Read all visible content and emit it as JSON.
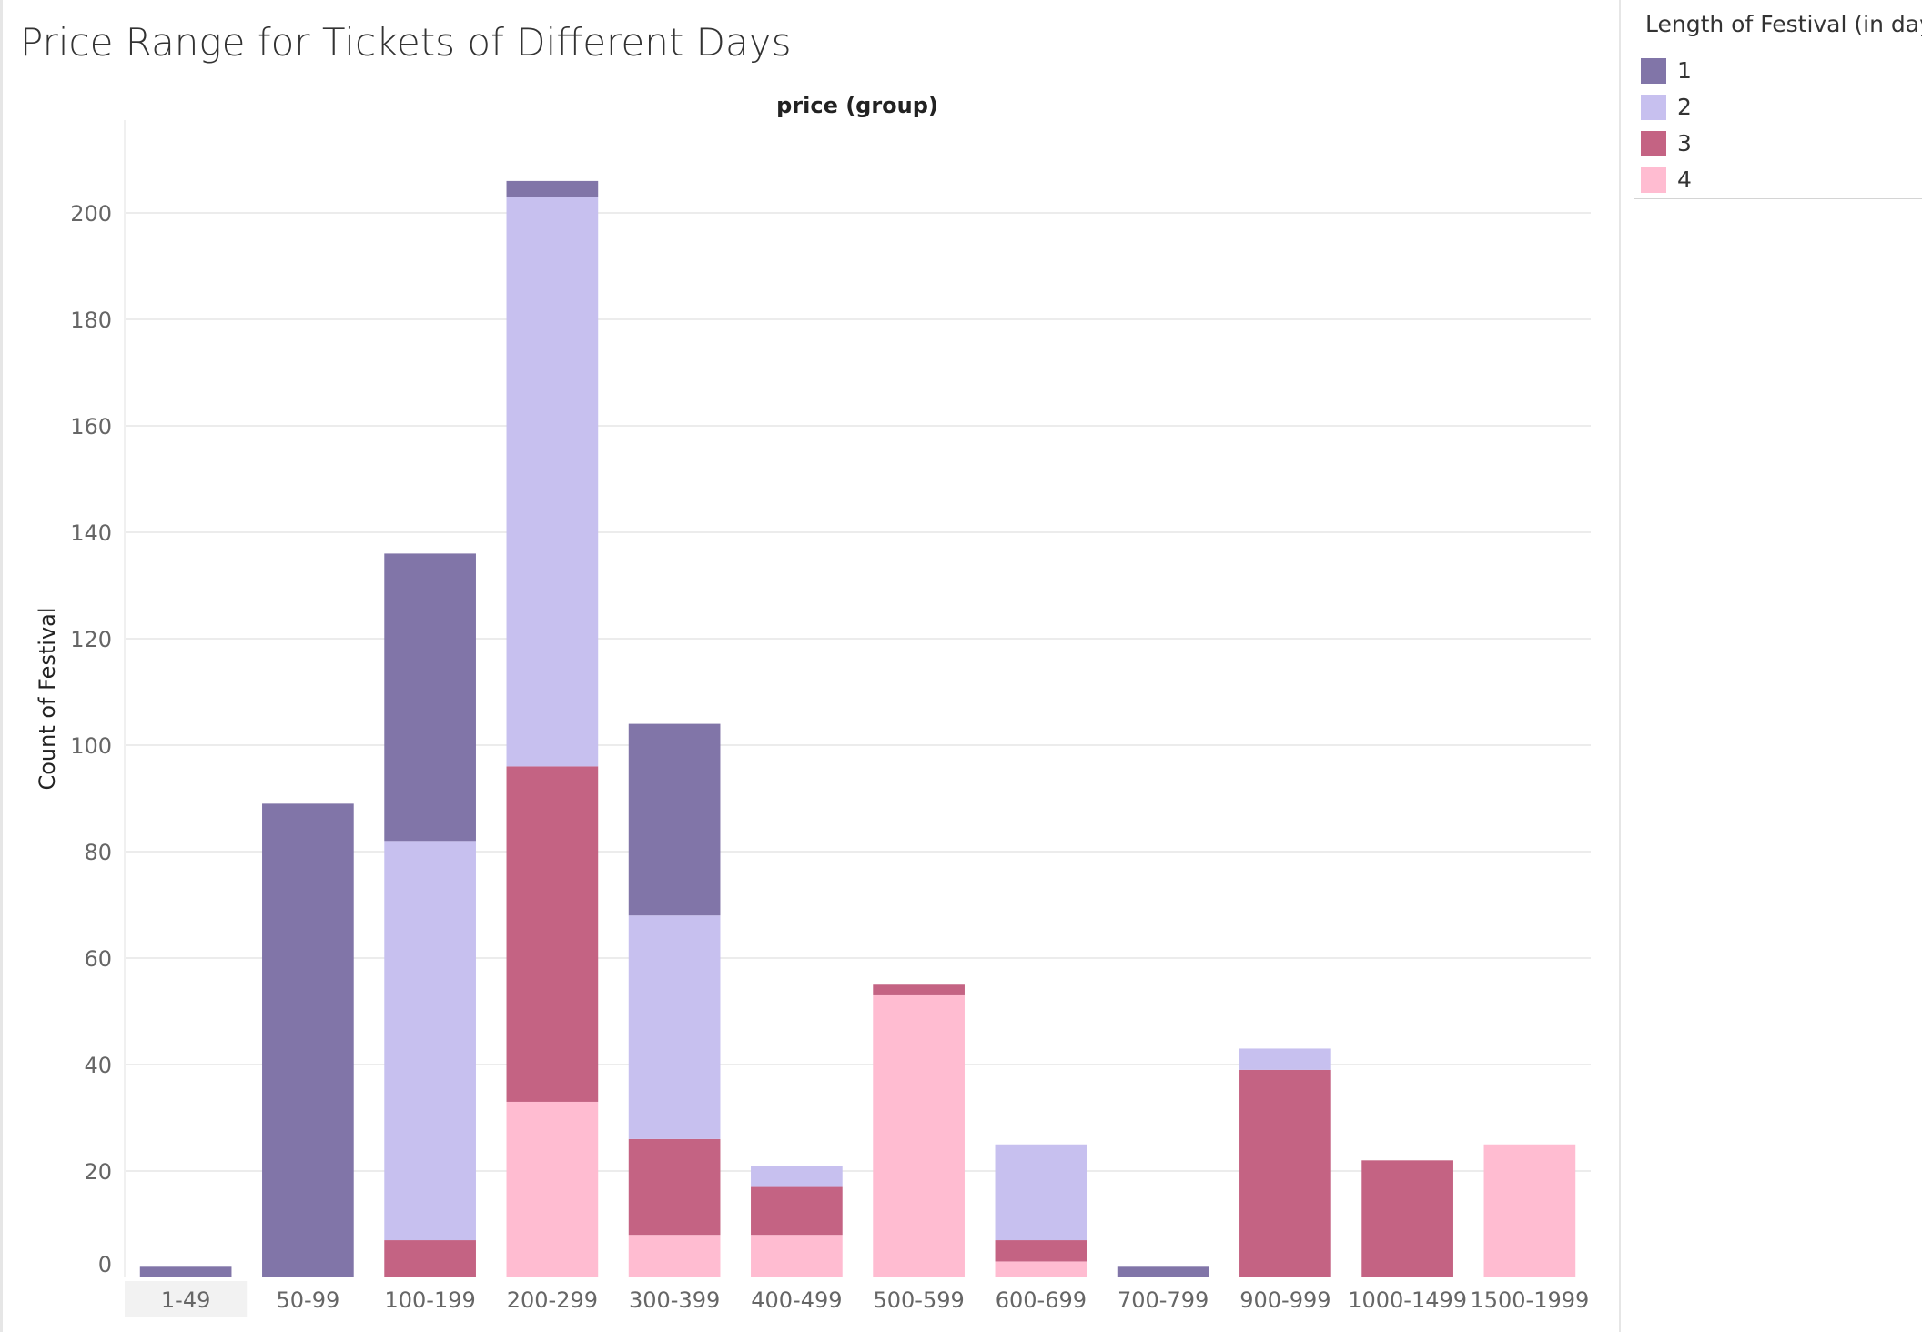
{
  "chart_data": {
    "type": "bar",
    "stacked": true,
    "title": "Price Range for Tickets of Different Days",
    "column_header": "price (group)",
    "ylabel": "Count of Festival",
    "ylim": [
      0,
      215
    ],
    "yticks": [
      0,
      20,
      40,
      60,
      80,
      100,
      120,
      140,
      160,
      180,
      200
    ],
    "grid": true,
    "categories": [
      "1-49",
      "50-99",
      "100-199",
      "200-299",
      "300-399",
      "400-499",
      "500-599",
      "600-699",
      "700-799",
      "900-999",
      "1000-1499",
      "1500-1999"
    ],
    "highlighted_category": "1-49",
    "legend_title": "Length of Festival (in days)",
    "legend_position": "top-right",
    "series": [
      {
        "name": "1",
        "color": "#8175a8",
        "values": [
          2,
          89,
          54,
          3,
          36,
          0,
          0,
          0,
          2,
          0,
          0,
          0
        ]
      },
      {
        "name": "2",
        "color": "#c7c0ef",
        "values": [
          0,
          0,
          75,
          107,
          42,
          4,
          0,
          18,
          0,
          4,
          0,
          0
        ]
      },
      {
        "name": "3",
        "color": "#c46383",
        "values": [
          0,
          0,
          7,
          63,
          18,
          9,
          2,
          4,
          0,
          39,
          22,
          0
        ]
      },
      {
        "name": "4",
        "color": "#ffbcd1",
        "values": [
          0,
          0,
          0,
          33,
          8,
          8,
          53,
          3,
          0,
          0,
          0,
          25
        ]
      }
    ]
  }
}
